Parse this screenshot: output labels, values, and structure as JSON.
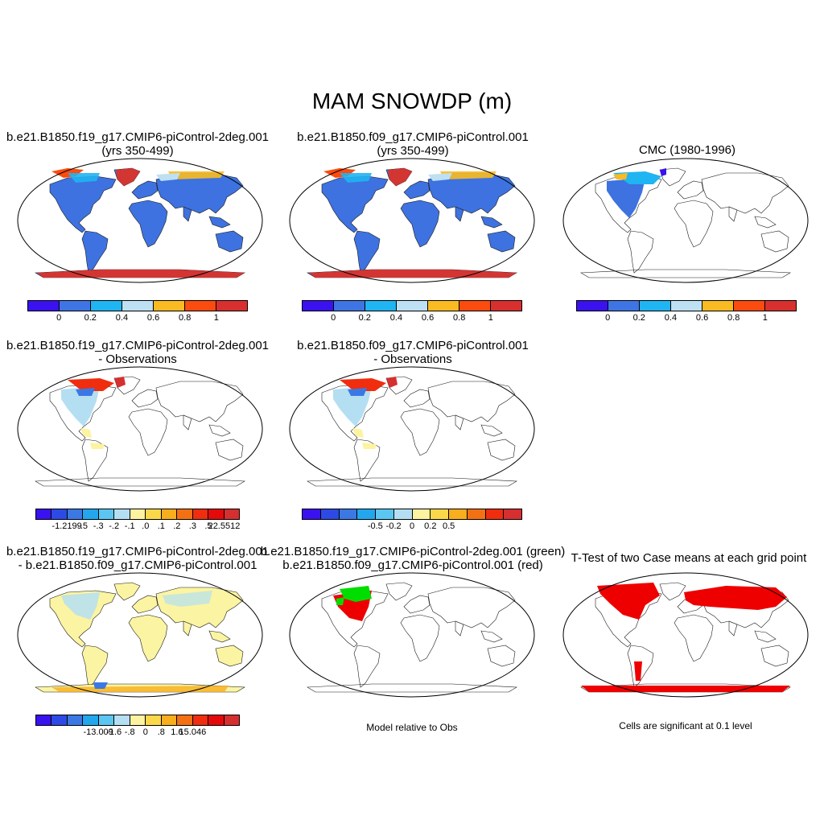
{
  "figure": {
    "title": "MAM SNOWDP (m)"
  },
  "panels": {
    "p1": {
      "title_line1": "b.e21.B1850.f19_g17.CMIP6-piControl-2deg.001",
      "title_line2": "(yrs 350-499)"
    },
    "p2": {
      "title_line1": "b.e21.B1850.f09_g17.CMIP6-piControl.001",
      "title_line2": "(yrs 350-499)"
    },
    "p3": {
      "title_line1": "CMC (1980-1996)",
      "title_line2": ""
    },
    "p4": {
      "title_line1": "b.e21.B1850.f19_g17.CMIP6-piControl-2deg.001",
      "title_line2": "- Observations"
    },
    "p5": {
      "title_line1": "b.e21.B1850.f09_g17.CMIP6-piControl.001",
      "title_line2": "- Observations"
    },
    "p7": {
      "title_line1": "b.e21.B1850.f19_g17.CMIP6-piControl-2deg.001",
      "title_line2": "- b.e21.B1850.f09_g17.CMIP6-piControl.001"
    },
    "p8": {
      "title_line1": "b.e21.B1850.f19_g17.CMIP6-piControl-2deg.001 (green)",
      "title_line2": "b.e21.B1850.f09_g17.CMIP6-piControl.001 (red)",
      "note": "Model relative to Obs"
    },
    "p9": {
      "title_line1": "T-Test of two Case means at each grid point",
      "title_line2": "",
      "note": "Cells are significant at 0.1 level"
    }
  },
  "colorbars": {
    "abs": {
      "colors": [
        "#3a12f0",
        "#3f74e4",
        "#1fb4f2",
        "#bee0f3",
        "#f9bb21",
        "#fb4b0e",
        "#d8302f"
      ],
      "labels": [
        "0",
        "0.2",
        "0.4",
        "0.6",
        "0.8",
        "1"
      ]
    },
    "diff1": {
      "colors": [
        "#3a12f0",
        "#2e4ae6",
        "#3b78e4",
        "#22a7ee",
        "#5cc6f2",
        "#b4dff2",
        "#fdf3a0",
        "#fbd84a",
        "#f8ae1d",
        "#f37113",
        "#f02d0f",
        "#e40a0a",
        "#d62f30"
      ],
      "labels": [
        "-1.2199",
        "-.5",
        "-.3",
        "-.2",
        "-.1",
        ".0",
        ".1",
        ".2",
        ".3",
        ".5",
        "22.5512"
      ]
    },
    "diff2": {
      "colors": [
        "#3a12f0",
        "#2e4ae6",
        "#3b78e4",
        "#22a7ee",
        "#5cc6f2",
        "#b4dff2",
        "#fdf3a0",
        "#fbd84a",
        "#f8ae1d",
        "#f37113",
        "#f02d0f",
        "#d62f30"
      ],
      "labels": [
        "-0.5",
        "-0.2",
        "0",
        "0.2",
        "0.5"
      ]
    },
    "diff3": {
      "colors": [
        "#3a12f0",
        "#2e4ae6",
        "#3b78e4",
        "#22a7ee",
        "#5cc6f2",
        "#b4dff2",
        "#fdf3a0",
        "#fbd84a",
        "#f8ae1d",
        "#f37113",
        "#f02d0f",
        "#e40a0a",
        "#d62f30"
      ],
      "labels": [
        "-13.009",
        "-1.6",
        "-.8",
        "0",
        ".8",
        "1.6",
        "15.046"
      ]
    }
  },
  "colors": {
    "land_blue": "#3d72e0",
    "antarctica_red": "#d33533",
    "pale_yellow": "#fbf4a2",
    "light_blue": "#b4dff2",
    "sig_red": "#ee0000",
    "green": "#00dd00"
  }
}
